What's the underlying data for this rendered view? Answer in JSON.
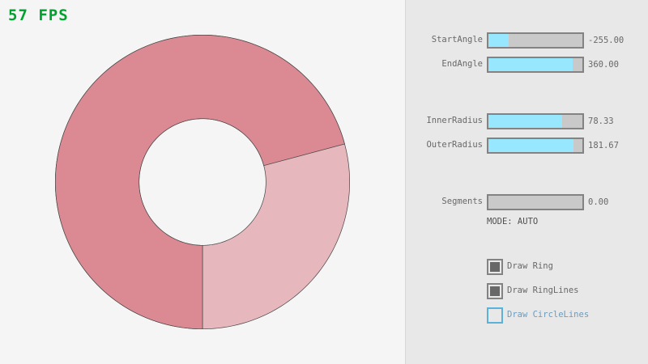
{
  "fps": {
    "text": "57 FPS",
    "color": "#00a32e"
  },
  "ring": {
    "start_angle": -255.0,
    "end_angle": 360.0,
    "inner_radius": 78.33,
    "outer_radius": 181.67,
    "color_single": "#e6b8bd",
    "color_overlap": "#db8a93",
    "outline": "#444444"
  },
  "controls": {
    "sliders": [
      {
        "label": "StartAngle",
        "value": "-255.00",
        "fraction": 0.217
      },
      {
        "label": "EndAngle",
        "value": "360.00",
        "fraction": 0.9
      },
      {
        "label": "InnerRadius",
        "value": "78.33",
        "fraction": 0.783
      },
      {
        "label": "OuterRadius",
        "value": "181.67",
        "fraction": 0.908
      },
      {
        "label": "Segments",
        "value": "0.00",
        "fraction": 0
      }
    ],
    "mode": "MODE: AUTO",
    "checkboxes": [
      {
        "label": "Draw Ring",
        "checked": true
      },
      {
        "label": "Draw RingLines",
        "checked": true
      },
      {
        "label": "Draw CircleLines",
        "checked": false
      }
    ]
  }
}
